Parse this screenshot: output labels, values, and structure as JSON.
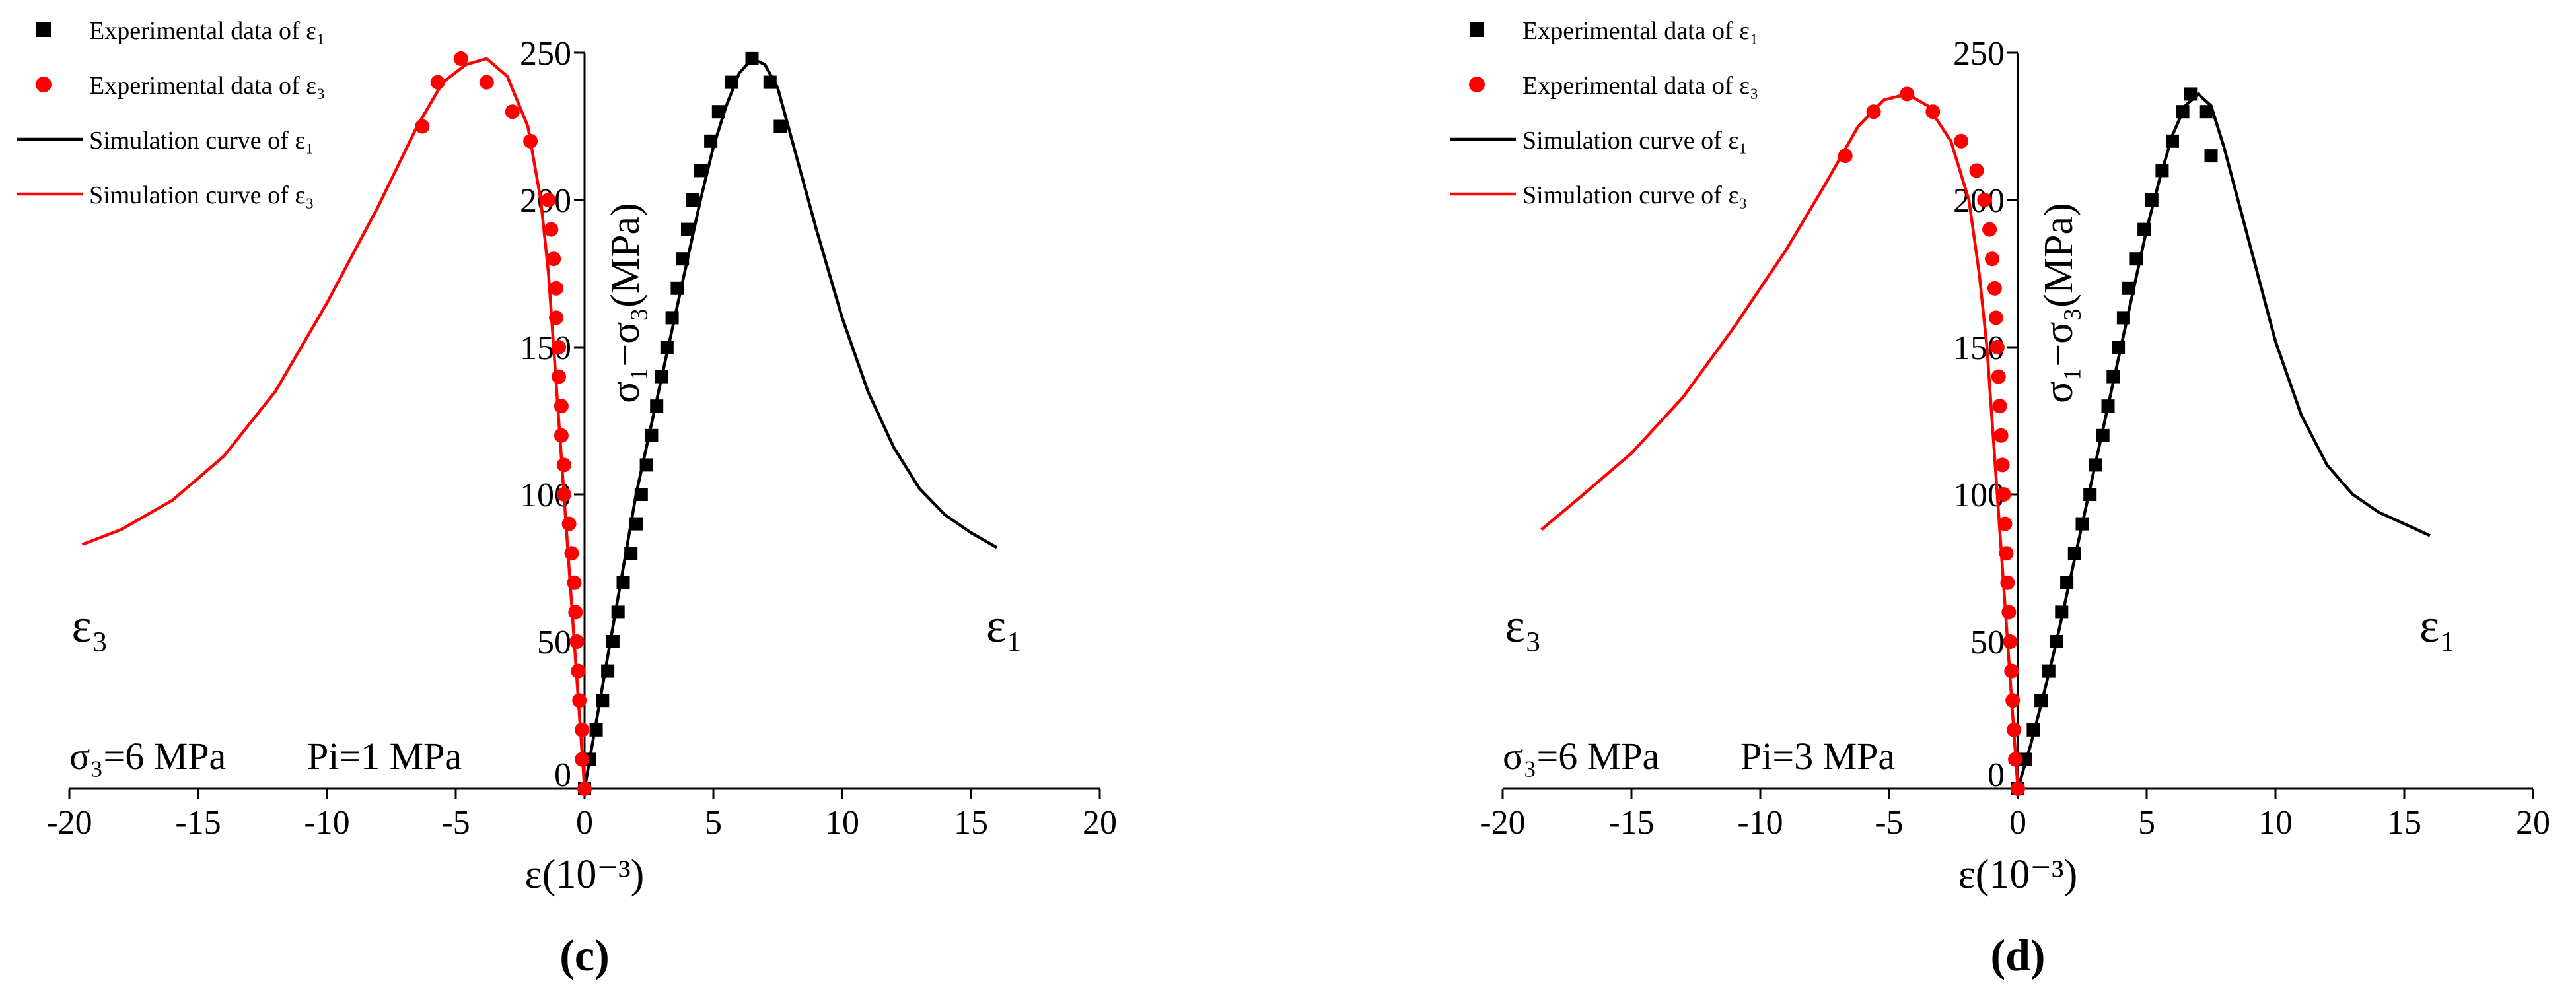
{
  "colors": {
    "series_e1": "#000000",
    "series_e3": "#ff0000",
    "axis": "#000000"
  },
  "chart_data": [
    {
      "type": "scatter+line",
      "panel_label": "(c)",
      "title": "",
      "xlabel": "ε(10⁻³)",
      "ylabel": "σ₁−σ₃(MPa)",
      "xlim": [
        -20,
        20
      ],
      "ylim": [
        0,
        250
      ],
      "xticks": [
        -20,
        -15,
        -10,
        -5,
        0,
        5,
        10,
        15,
        20
      ],
      "yticks": [
        0,
        50,
        100,
        150,
        200,
        250
      ],
      "annotation": {
        "sigma3": "σ₃=6 MPa",
        "pi": "Pi=1 MPa"
      },
      "curve_labels": {
        "e3": "ε₃",
        "e1": "ε₁"
      },
      "legend": [
        {
          "label": "Experimental data of ε₁",
          "marker": "square",
          "color": "#000000"
        },
        {
          "label": "Experimental data of ε₃",
          "marker": "circle",
          "color": "#ff0000"
        },
        {
          "label": "Simulation curve of ε₁",
          "marker": "line",
          "color": "#000000"
        },
        {
          "label": "Simulation curve of ε₃",
          "marker": "line",
          "color": "#ff0000"
        }
      ],
      "series": [
        {
          "name": "Experimental data of ε₁",
          "kind": "points",
          "marker": "square",
          "color": "#000000",
          "points": [
            [
              0,
              0
            ],
            [
              0.2,
              10
            ],
            [
              0.45,
              20
            ],
            [
              0.7,
              30
            ],
            [
              0.9,
              40
            ],
            [
              1.1,
              50
            ],
            [
              1.3,
              60
            ],
            [
              1.5,
              70
            ],
            [
              1.8,
              80
            ],
            [
              2.0,
              90
            ],
            [
              2.2,
              100
            ],
            [
              2.4,
              110
            ],
            [
              2.6,
              120
            ],
            [
              2.8,
              130
            ],
            [
              3.0,
              140
            ],
            [
              3.2,
              150
            ],
            [
              3.4,
              160
            ],
            [
              3.6,
              170
            ],
            [
              3.8,
              180
            ],
            [
              4.0,
              190
            ],
            [
              4.2,
              200
            ],
            [
              4.5,
              210
            ],
            [
              4.9,
              220
            ],
            [
              5.2,
              230
            ],
            [
              5.7,
              240
            ],
            [
              6.5,
              248
            ],
            [
              7.2,
              240
            ],
            [
              7.6,
              225
            ]
          ]
        },
        {
          "name": "Experimental data of ε₃",
          "kind": "points",
          "marker": "circle",
          "color": "#ff0000",
          "points": [
            [
              0,
              0
            ],
            [
              -0.1,
              10
            ],
            [
              -0.1,
              20
            ],
            [
              -0.2,
              30
            ],
            [
              -0.25,
              40
            ],
            [
              -0.3,
              50
            ],
            [
              -0.35,
              60
            ],
            [
              -0.4,
              70
            ],
            [
              -0.5,
              80
            ],
            [
              -0.6,
              90
            ],
            [
              -0.8,
              100
            ],
            [
              -0.8,
              110
            ],
            [
              -0.9,
              120
            ],
            [
              -0.9,
              130
            ],
            [
              -1.0,
              140
            ],
            [
              -1.0,
              150
            ],
            [
              -1.1,
              160
            ],
            [
              -1.1,
              170
            ],
            [
              -1.2,
              180
            ],
            [
              -1.3,
              190
            ],
            [
              -1.4,
              200
            ],
            [
              -2.1,
              220
            ],
            [
              -2.8,
              230
            ],
            [
              -3.8,
              240
            ],
            [
              -4.8,
              248
            ],
            [
              -5.7,
              240
            ],
            [
              -6.3,
              225
            ]
          ]
        },
        {
          "name": "Simulation curve of ε₁",
          "kind": "line",
          "color": "#000000",
          "points": [
            [
              0,
              0
            ],
            [
              0.5,
              25
            ],
            [
              1,
              50
            ],
            [
              1.5,
              75
            ],
            [
              2,
              100
            ],
            [
              2.5,
              120
            ],
            [
              3,
              140
            ],
            [
              3.5,
              160
            ],
            [
              4,
              180
            ],
            [
              4.5,
              200
            ],
            [
              5,
              218
            ],
            [
              5.5,
              232
            ],
            [
              6,
              243
            ],
            [
              6.5,
              248
            ],
            [
              7,
              246
            ],
            [
              7.5,
              238
            ],
            [
              8,
              222
            ],
            [
              9,
              190
            ],
            [
              10,
              160
            ],
            [
              11,
              135
            ],
            [
              12,
              116
            ],
            [
              13,
              102
            ],
            [
              14,
              93
            ],
            [
              15,
              87
            ],
            [
              16,
              82
            ]
          ]
        },
        {
          "name": "Simulation curve of ε₃",
          "kind": "line",
          "color": "#ff0000",
          "points": [
            [
              0,
              0
            ],
            [
              -0.2,
              25
            ],
            [
              -0.4,
              50
            ],
            [
              -0.6,
              75
            ],
            [
              -0.8,
              100
            ],
            [
              -1.0,
              125
            ],
            [
              -1.2,
              150
            ],
            [
              -1.4,
              175
            ],
            [
              -1.7,
              200
            ],
            [
              -2.2,
              225
            ],
            [
              -3.0,
              242
            ],
            [
              -3.8,
              248
            ],
            [
              -4.6,
              246
            ],
            [
              -5.5,
              240
            ],
            [
              -6.5,
              225
            ],
            [
              -8,
              198
            ],
            [
              -10,
              165
            ],
            [
              -12,
              135
            ],
            [
              -14,
              113
            ],
            [
              -16,
              98
            ],
            [
              -18,
              88
            ],
            [
              -19.5,
              83
            ]
          ]
        }
      ]
    },
    {
      "type": "scatter+line",
      "panel_label": "(d)",
      "title": "",
      "xlabel": "ε(10⁻³)",
      "ylabel": "σ₁−σ₃(MPa)",
      "xlim": [
        -20,
        20
      ],
      "ylim": [
        0,
        250
      ],
      "xticks": [
        -20,
        -15,
        -10,
        -5,
        0,
        5,
        10,
        15,
        20
      ],
      "yticks": [
        0,
        50,
        100,
        150,
        200,
        250
      ],
      "annotation": {
        "sigma3": "σ₃=6 MPa",
        "pi": "Pi=3 MPa"
      },
      "curve_labels": {
        "e3": "ε₃",
        "e1": "ε₁"
      },
      "legend": [
        {
          "label": "Experimental data of ε₁",
          "marker": "square",
          "color": "#000000"
        },
        {
          "label": "Experimental data of ε₃",
          "marker": "circle",
          "color": "#ff0000"
        },
        {
          "label": "Simulation curve of ε₁",
          "marker": "line",
          "color": "#000000"
        },
        {
          "label": "Simulation curve of ε₃",
          "marker": "line",
          "color": "#ff0000"
        }
      ],
      "series": [
        {
          "name": "Experimental data of ε₁",
          "kind": "points",
          "marker": "square",
          "color": "#000000",
          "points": [
            [
              0,
              0
            ],
            [
              0.3,
              10
            ],
            [
              0.6,
              20
            ],
            [
              0.9,
              30
            ],
            [
              1.2,
              40
            ],
            [
              1.5,
              50
            ],
            [
              1.7,
              60
            ],
            [
              1.9,
              70
            ],
            [
              2.2,
              80
            ],
            [
              2.5,
              90
            ],
            [
              2.8,
              100
            ],
            [
              3.0,
              110
            ],
            [
              3.3,
              120
            ],
            [
              3.5,
              130
            ],
            [
              3.7,
              140
            ],
            [
              3.9,
              150
            ],
            [
              4.1,
              160
            ],
            [
              4.3,
              170
            ],
            [
              4.6,
              180
            ],
            [
              4.9,
              190
            ],
            [
              5.2,
              200
            ],
            [
              5.6,
              210
            ],
            [
              6.0,
              220
            ],
            [
              6.4,
              230
            ],
            [
              6.7,
              236
            ],
            [
              7.3,
              230
            ],
            [
              7.5,
              215
            ]
          ]
        },
        {
          "name": "Experimental data of ε₃",
          "kind": "points",
          "marker": "circle",
          "color": "#ff0000",
          "points": [
            [
              0,
              0
            ],
            [
              -0.1,
              10
            ],
            [
              -0.15,
              20
            ],
            [
              -0.2,
              30
            ],
            [
              -0.25,
              40
            ],
            [
              -0.3,
              50
            ],
            [
              -0.35,
              60
            ],
            [
              -0.4,
              70
            ],
            [
              -0.45,
              80
            ],
            [
              -0.5,
              90
            ],
            [
              -0.55,
              100
            ],
            [
              -0.6,
              110
            ],
            [
              -0.65,
              120
            ],
            [
              -0.7,
              130
            ],
            [
              -0.75,
              140
            ],
            [
              -0.8,
              150
            ],
            [
              -0.85,
              160
            ],
            [
              -0.9,
              170
            ],
            [
              -1.0,
              180
            ],
            [
              -1.1,
              190
            ],
            [
              -1.3,
              200
            ],
            [
              -1.6,
              210
            ],
            [
              -2.2,
              220
            ],
            [
              -3.3,
              230
            ],
            [
              -4.3,
              236
            ],
            [
              -5.6,
              230
            ],
            [
              -6.7,
              215
            ]
          ]
        },
        {
          "name": "Simulation curve of ε₁",
          "kind": "line",
          "color": "#000000",
          "points": [
            [
              0,
              0
            ],
            [
              0.5,
              15
            ],
            [
              1,
              32
            ],
            [
              1.5,
              50
            ],
            [
              2,
              70
            ],
            [
              2.5,
              90
            ],
            [
              3,
              110
            ],
            [
              3.5,
              130
            ],
            [
              4,
              150
            ],
            [
              4.5,
              170
            ],
            [
              5,
              190
            ],
            [
              5.5,
              207
            ],
            [
              6,
              222
            ],
            [
              6.5,
              232
            ],
            [
              7,
              236
            ],
            [
              7.5,
              232
            ],
            [
              8,
              218
            ],
            [
              9,
              185
            ],
            [
              10,
              152
            ],
            [
              11,
              127
            ],
            [
              12,
              110
            ],
            [
              13,
              100
            ],
            [
              14,
              94
            ],
            [
              15,
              90
            ],
            [
              16,
              86
            ]
          ]
        },
        {
          "name": "Simulation curve of ε₃",
          "kind": "line",
          "color": "#ff0000",
          "points": [
            [
              0,
              0
            ],
            [
              -0.2,
              25
            ],
            [
              -0.4,
              50
            ],
            [
              -0.6,
              75
            ],
            [
              -0.8,
              100
            ],
            [
              -1.0,
              125
            ],
            [
              -1.2,
              150
            ],
            [
              -1.5,
              175
            ],
            [
              -1.9,
              200
            ],
            [
              -2.6,
              220
            ],
            [
              -3.5,
              232
            ],
            [
              -4.3,
              236
            ],
            [
              -5.2,
              234
            ],
            [
              -6.2,
              225
            ],
            [
              -7.5,
              205
            ],
            [
              -9,
              183
            ],
            [
              -11,
              157
            ],
            [
              -13,
              133
            ],
            [
              -15,
              114
            ],
            [
              -17,
              99
            ],
            [
              -18.5,
              88
            ]
          ]
        }
      ]
    }
  ]
}
